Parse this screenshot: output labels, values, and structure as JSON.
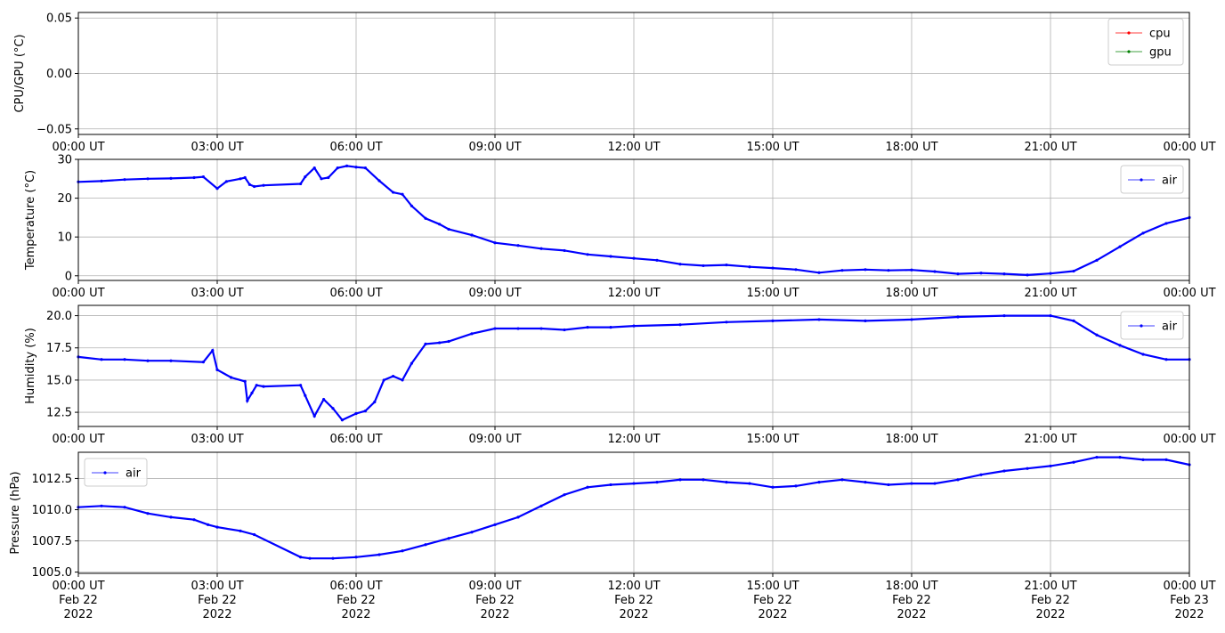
{
  "chart_data": [
    {
      "type": "line",
      "ylabel": "CPU/GPU (°C)",
      "ylim": [
        -0.055,
        0.055
      ],
      "yticks": [
        "0.05",
        "0.00",
        "−0.05"
      ],
      "ytick_values": [
        0.05,
        0.0,
        -0.05
      ],
      "grid": true,
      "legend_position": "top-right",
      "series": [
        {
          "name": "cpu",
          "color": "#ff0000",
          "points": []
        },
        {
          "name": "gpu",
          "color": "#008000",
          "points": []
        }
      ]
    },
    {
      "type": "line",
      "ylabel": "Temperature (°C)",
      "ylim": [
        -1.2,
        30
      ],
      "yticks": [
        "30",
        "20",
        "10",
        "0"
      ],
      "ytick_values": [
        30,
        20,
        10,
        0
      ],
      "grid": true,
      "legend_position": "top-right",
      "series": [
        {
          "name": "air",
          "color": "#0000ff",
          "points": [
            [
              0,
              24.2
            ],
            [
              0.5,
              24.4
            ],
            [
              1,
              24.8
            ],
            [
              1.5,
              25.0
            ],
            [
              2,
              25.1
            ],
            [
              2.5,
              25.3
            ],
            [
              2.7,
              25.5
            ],
            [
              3.0,
              22.5
            ],
            [
              3.2,
              24.3
            ],
            [
              3.5,
              25.0
            ],
            [
              3.6,
              25.3
            ],
            [
              3.7,
              23.5
            ],
            [
              3.8,
              23.0
            ],
            [
              4.0,
              23.3
            ],
            [
              4.8,
              23.7
            ],
            [
              4.9,
              25.5
            ],
            [
              5.1,
              27.8
            ],
            [
              5.25,
              25.0
            ],
            [
              5.4,
              25.3
            ],
            [
              5.6,
              27.8
            ],
            [
              5.8,
              28.3
            ],
            [
              6.0,
              28.0
            ],
            [
              6.2,
              27.8
            ],
            [
              6.5,
              24.5
            ],
            [
              6.8,
              21.5
            ],
            [
              7.0,
              21.0
            ],
            [
              7.2,
              18.0
            ],
            [
              7.5,
              14.8
            ],
            [
              7.8,
              13.3
            ],
            [
              8.0,
              12.0
            ],
            [
              8.5,
              10.5
            ],
            [
              9.0,
              8.5
            ],
            [
              9.5,
              7.8
            ],
            [
              10,
              7.0
            ],
            [
              10.5,
              6.5
            ],
            [
              11,
              5.5
            ],
            [
              11.5,
              5.0
            ],
            [
              12,
              4.5
            ],
            [
              12.5,
              4.0
            ],
            [
              13,
              3.0
            ],
            [
              13.5,
              2.6
            ],
            [
              14,
              2.8
            ],
            [
              14.5,
              2.3
            ],
            [
              15,
              2.0
            ],
            [
              15.5,
              1.6
            ],
            [
              16,
              0.8
            ],
            [
              16.5,
              1.4
            ],
            [
              17,
              1.6
            ],
            [
              17.5,
              1.4
            ],
            [
              18,
              1.5
            ],
            [
              18.5,
              1.1
            ],
            [
              19,
              0.5
            ],
            [
              19.5,
              0.7
            ],
            [
              20,
              0.5
            ],
            [
              20.5,
              0.2
            ],
            [
              21,
              0.6
            ],
            [
              21.5,
              1.2
            ],
            [
              22,
              4.0
            ],
            [
              22.5,
              7.5
            ],
            [
              23,
              11.0
            ],
            [
              23.5,
              13.5
            ],
            [
              24,
              15.0
            ]
          ]
        }
      ]
    },
    {
      "type": "line",
      "ylabel": "Humidity (%)",
      "ylim": [
        11.4,
        20.8
      ],
      "yticks": [
        "20.0",
        "17.5",
        "15.0",
        "12.5"
      ],
      "ytick_values": [
        20.0,
        17.5,
        15.0,
        12.5
      ],
      "grid": true,
      "legend_position": "top-right",
      "series": [
        {
          "name": "air",
          "color": "#0000ff",
          "points": [
            [
              0,
              16.8
            ],
            [
              0.5,
              16.6
            ],
            [
              1,
              16.6
            ],
            [
              1.5,
              16.5
            ],
            [
              2,
              16.5
            ],
            [
              2.7,
              16.4
            ],
            [
              2.9,
              17.3
            ],
            [
              3.0,
              15.8
            ],
            [
              3.3,
              15.2
            ],
            [
              3.6,
              14.9
            ],
            [
              3.65,
              13.4
            ],
            [
              3.75,
              14.0
            ],
            [
              3.85,
              14.6
            ],
            [
              4.0,
              14.5
            ],
            [
              4.8,
              14.6
            ],
            [
              4.9,
              13.8
            ],
            [
              5.1,
              12.2
            ],
            [
              5.3,
              13.5
            ],
            [
              5.5,
              12.8
            ],
            [
              5.7,
              11.9
            ],
            [
              6.0,
              12.4
            ],
            [
              6.2,
              12.6
            ],
            [
              6.4,
              13.3
            ],
            [
              6.6,
              15.0
            ],
            [
              6.8,
              15.3
            ],
            [
              7.0,
              15.0
            ],
            [
              7.2,
              16.3
            ],
            [
              7.5,
              17.8
            ],
            [
              7.8,
              17.9
            ],
            [
              8.0,
              18.0
            ],
            [
              8.5,
              18.6
            ],
            [
              9,
              19.0
            ],
            [
              9.5,
              19.0
            ],
            [
              10,
              19.0
            ],
            [
              10.5,
              18.9
            ],
            [
              11,
              19.1
            ],
            [
              11.5,
              19.1
            ],
            [
              12,
              19.2
            ],
            [
              13,
              19.3
            ],
            [
              14,
              19.5
            ],
            [
              15,
              19.6
            ],
            [
              16,
              19.7
            ],
            [
              17,
              19.6
            ],
            [
              18,
              19.7
            ],
            [
              19,
              19.9
            ],
            [
              20,
              20.0
            ],
            [
              21,
              20.0
            ],
            [
              21.5,
              19.6
            ],
            [
              22,
              18.5
            ],
            [
              22.5,
              17.7
            ],
            [
              23,
              17.0
            ],
            [
              23.5,
              16.6
            ],
            [
              24,
              16.6
            ]
          ]
        }
      ]
    },
    {
      "type": "line",
      "ylabel": "Pressure (hPa)",
      "ylim": [
        1004.9,
        1014.6
      ],
      "yticks": [
        "1012.5",
        "1010.0",
        "1007.5",
        "1005.0"
      ],
      "ytick_values": [
        1012.5,
        1010.0,
        1007.5,
        1005.0
      ],
      "grid": true,
      "legend_position": "top-left",
      "series": [
        {
          "name": "air",
          "color": "#0000ff",
          "points": [
            [
              0,
              1010.2
            ],
            [
              0.5,
              1010.3
            ],
            [
              1,
              1010.2
            ],
            [
              1.5,
              1009.7
            ],
            [
              2,
              1009.4
            ],
            [
              2.5,
              1009.2
            ],
            [
              2.8,
              1008.8
            ],
            [
              3.0,
              1008.6
            ],
            [
              3.5,
              1008.3
            ],
            [
              3.8,
              1008.0
            ],
            [
              4.8,
              1006.2
            ],
            [
              5.0,
              1006.1
            ],
            [
              5.5,
              1006.1
            ],
            [
              6.0,
              1006.2
            ],
            [
              6.5,
              1006.4
            ],
            [
              7.0,
              1006.7
            ],
            [
              7.5,
              1007.2
            ],
            [
              8.0,
              1007.7
            ],
            [
              8.5,
              1008.2
            ],
            [
              9.0,
              1008.8
            ],
            [
              9.5,
              1009.4
            ],
            [
              10,
              1010.3
            ],
            [
              10.5,
              1011.2
            ],
            [
              11,
              1011.8
            ],
            [
              11.5,
              1012.0
            ],
            [
              12,
              1012.1
            ],
            [
              12.5,
              1012.2
            ],
            [
              13,
              1012.4
            ],
            [
              13.5,
              1012.4
            ],
            [
              14,
              1012.2
            ],
            [
              14.5,
              1012.1
            ],
            [
              15,
              1011.8
            ],
            [
              15.5,
              1011.9
            ],
            [
              16,
              1012.2
            ],
            [
              16.5,
              1012.4
            ],
            [
              17,
              1012.2
            ],
            [
              17.5,
              1012.0
            ],
            [
              18,
              1012.1
            ],
            [
              18.5,
              1012.1
            ],
            [
              19,
              1012.4
            ],
            [
              19.5,
              1012.8
            ],
            [
              20,
              1013.1
            ],
            [
              20.5,
              1013.3
            ],
            [
              21,
              1013.5
            ],
            [
              21.5,
              1013.8
            ],
            [
              22,
              1014.2
            ],
            [
              22.5,
              1014.2
            ],
            [
              23,
              1014.0
            ],
            [
              23.5,
              1014.0
            ],
            [
              24,
              1013.6
            ]
          ]
        }
      ]
    }
  ],
  "xticks": [
    "00:00 UT",
    "03:00 UT",
    "06:00 UT",
    "09:00 UT",
    "12:00 UT",
    "15:00 UT",
    "18:00 UT",
    "21:00 UT",
    "00:00 UT"
  ],
  "xtick_hours": [
    0,
    3,
    6,
    9,
    12,
    15,
    18,
    21,
    24
  ],
  "xrange_hours": [
    0,
    24
  ],
  "date_lines": [
    "Feb 22",
    "Feb 22",
    "Feb 22",
    "Feb 22",
    "Feb 22",
    "Feb 22",
    "Feb 22",
    "Feb 22",
    "Feb 23"
  ],
  "year_lines": [
    "2022",
    "2022",
    "2022",
    "2022",
    "2022",
    "2022",
    "2022",
    "2022",
    "2022"
  ]
}
